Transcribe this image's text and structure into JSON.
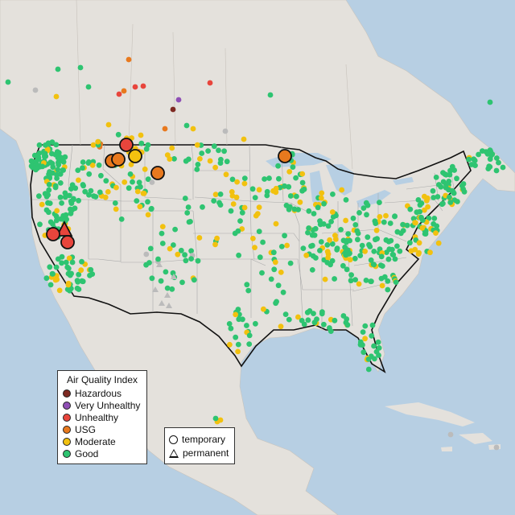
{
  "legend": {
    "title": "Air Quality Index",
    "categories": [
      {
        "label": "Hazardous",
        "color": "#7e2a22"
      },
      {
        "label": "Very Unhealthy",
        "color": "#8f4fb5"
      },
      {
        "label": "Unhealthy",
        "color": "#e8453c"
      },
      {
        "label": "USG",
        "color": "#e8791e"
      },
      {
        "label": "Moderate",
        "color": "#f2c10f"
      },
      {
        "label": "Good",
        "color": "#2ec471"
      }
    ]
  },
  "site_types": {
    "temporary": "temporary",
    "permanent": "permanent"
  },
  "colors": {
    "ocean": "#b7cfe3",
    "land": "#e4e1dc",
    "lakes": "#b7cfe3",
    "border": "#111111",
    "state_lines": "#aaaaaa",
    "unknown": "#bbbbbb"
  }
}
